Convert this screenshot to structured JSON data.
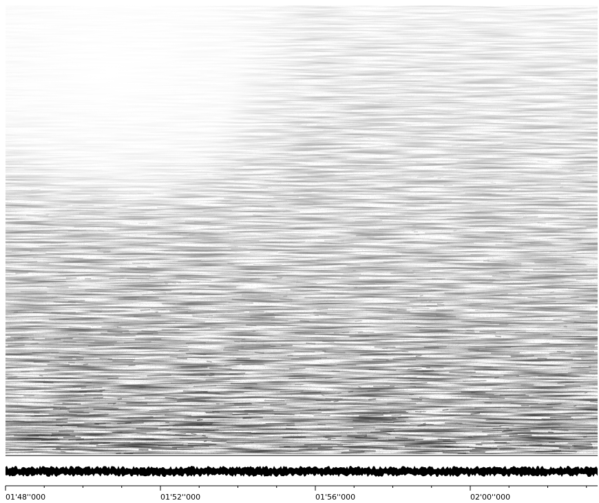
{
  "timeline": {
    "labels": [
      "01'48''000",
      "01'52''000",
      "01'56''000",
      "02'00''000"
    ]
  }
}
